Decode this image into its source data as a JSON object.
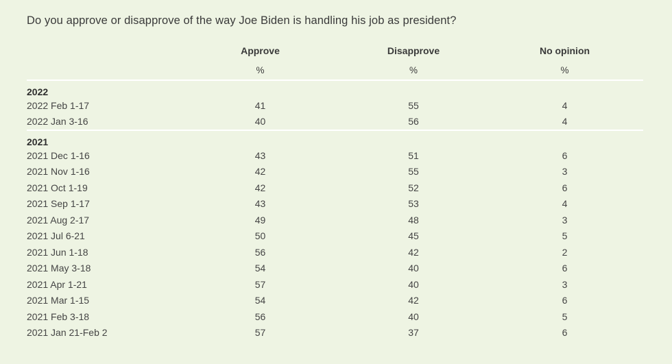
{
  "question": "Do you approve or disapprove of the way Joe Biden is handling his job as president?",
  "columns": [
    {
      "label": "Approve",
      "unit": "%"
    },
    {
      "label": "Disapprove",
      "unit": "%"
    },
    {
      "label": "No opinion",
      "unit": "%"
    }
  ],
  "groups": [
    {
      "year": "2022",
      "rows": [
        {
          "label": "2022 Feb 1-17",
          "approve": "41",
          "disapprove": "55",
          "no_opinion": "4"
        },
        {
          "label": "2022 Jan 3-16",
          "approve": "40",
          "disapprove": "56",
          "no_opinion": "4"
        }
      ]
    },
    {
      "year": "2021",
      "rows": [
        {
          "label": "2021 Dec 1-16",
          "approve": "43",
          "disapprove": "51",
          "no_opinion": "6"
        },
        {
          "label": "2021 Nov 1-16",
          "approve": "42",
          "disapprove": "55",
          "no_opinion": "3"
        },
        {
          "label": "2021 Oct 1-19",
          "approve": "42",
          "disapprove": "52",
          "no_opinion": "6"
        },
        {
          "label": "2021 Sep 1-17",
          "approve": "43",
          "disapprove": "53",
          "no_opinion": "4"
        },
        {
          "label": "2021 Aug 2-17",
          "approve": "49",
          "disapprove": "48",
          "no_opinion": "3"
        },
        {
          "label": "2021 Jul 6-21",
          "approve": "50",
          "disapprove": "45",
          "no_opinion": "5"
        },
        {
          "label": "2021 Jun 1-18",
          "approve": "56",
          "disapprove": "42",
          "no_opinion": "2"
        },
        {
          "label": "2021 May 3-18",
          "approve": "54",
          "disapprove": "40",
          "no_opinion": "6"
        },
        {
          "label": "2021 Apr 1-21",
          "approve": "57",
          "disapprove": "40",
          "no_opinion": "3"
        },
        {
          "label": "2021 Mar 1-15",
          "approve": "54",
          "disapprove": "42",
          "no_opinion": "6"
        },
        {
          "label": "2021 Feb 3-18",
          "approve": "56",
          "disapprove": "40",
          "no_opinion": "5"
        },
        {
          "label": "2021 Jan 21-Feb 2",
          "approve": "57",
          "disapprove": "37",
          "no_opinion": "6"
        }
      ]
    }
  ]
}
